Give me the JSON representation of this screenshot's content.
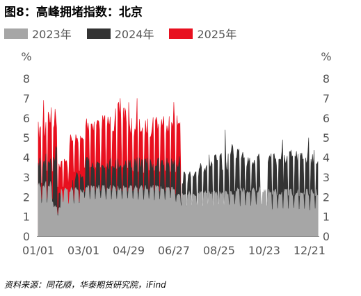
{
  "title": "图8：高峰拥堵指数：北京",
  "source": "资料来源：同花顺，华泰期货研究院，iFind",
  "chart_data": {
    "type": "area",
    "y_unit": "%",
    "ylim": [
      0,
      8
    ],
    "y_ticks": [
      0,
      1,
      2,
      3,
      4,
      5,
      6,
      7,
      8
    ],
    "x_tick_labels": [
      "01/01",
      "03/01",
      "04/29",
      "06/27",
      "08/25",
      "10/23",
      "12/21"
    ],
    "x_tick_days": [
      1,
      60,
      119,
      178,
      237,
      296,
      355
    ],
    "days_in_year": 366,
    "legend_position": "top-left",
    "grid": false,
    "series": [
      {
        "name": "2023年",
        "color": "#a6a6a6",
        "draw": "area",
        "weekday_levels": [
          {
            "from": 1,
            "to": 20,
            "low": 1.6,
            "high": 2.8
          },
          {
            "from": 21,
            "to": 30,
            "low": 1.0,
            "high": 1.6
          },
          {
            "from": 31,
            "to": 60,
            "low": 1.6,
            "high": 2.5
          },
          {
            "from": 61,
            "to": 180,
            "low": 1.8,
            "high": 2.6
          },
          {
            "from": 181,
            "to": 260,
            "low": 1.5,
            "high": 2.3
          },
          {
            "from": 261,
            "to": 300,
            "low": 1.5,
            "high": 2.5
          },
          {
            "from": 301,
            "to": 366,
            "low": 1.3,
            "high": 2.4
          }
        ]
      },
      {
        "name": "2024年",
        "color": "#333333",
        "draw": "area",
        "weekday_levels": [
          {
            "from": 1,
            "to": 10,
            "low": 1.8,
            "high": 4.0
          },
          {
            "from": 11,
            "to": 25,
            "low": 1.8,
            "high": 4.6
          },
          {
            "from": 26,
            "to": 45,
            "low": 1.1,
            "high": 2.2
          },
          {
            "from": 46,
            "to": 60,
            "low": 1.7,
            "high": 3.3
          },
          {
            "from": 61,
            "to": 175,
            "low": 2.2,
            "high": 4.0
          },
          {
            "from": 176,
            "to": 187,
            "low": 2.0,
            "high": 4.2
          },
          {
            "from": 188,
            "to": 210,
            "low": 1.4,
            "high": 3.3
          },
          {
            "from": 211,
            "to": 250,
            "low": 1.4,
            "high": 4.2
          },
          {
            "from": 251,
            "to": 270,
            "low": 2.2,
            "high": 4.7
          },
          {
            "from": 271,
            "to": 290,
            "low": 2.2,
            "high": 4.2
          },
          {
            "from": 291,
            "to": 300,
            "low": 1.1,
            "high": 2.0
          },
          {
            "from": 301,
            "to": 366,
            "low": 2.0,
            "high": 4.4
          }
        ],
        "peaks": [
          {
            "day": 245,
            "value": 5.4
          },
          {
            "day": 320,
            "value": 4.9
          },
          {
            "day": 354,
            "value": 5.0
          }
        ]
      },
      {
        "name": "2025年",
        "color": "#e8101f",
        "draw": "area",
        "weekday_levels": [
          {
            "from": 1,
            "to": 10,
            "low": 2.6,
            "high": 5.8
          },
          {
            "from": 11,
            "to": 25,
            "low": 3.2,
            "high": 6.6
          },
          {
            "from": 26,
            "to": 40,
            "low": 2.4,
            "high": 4.0
          },
          {
            "from": 41,
            "to": 60,
            "low": 3.2,
            "high": 5.2
          },
          {
            "from": 61,
            "to": 100,
            "low": 3.4,
            "high": 6.2
          },
          {
            "from": 101,
            "to": 120,
            "low": 3.4,
            "high": 6.8
          },
          {
            "from": 121,
            "to": 150,
            "low": 3.2,
            "high": 6.0
          },
          {
            "from": 151,
            "to": 180,
            "low": 3.2,
            "high": 6.3
          }
        ],
        "peaks": [
          {
            "day": 8,
            "value": 6.9
          },
          {
            "day": 108,
            "value": 7.0
          },
          {
            "day": 130,
            "value": 7.0
          },
          {
            "day": 178,
            "value": 6.8
          }
        ],
        "last_day": 187
      }
    ]
  }
}
